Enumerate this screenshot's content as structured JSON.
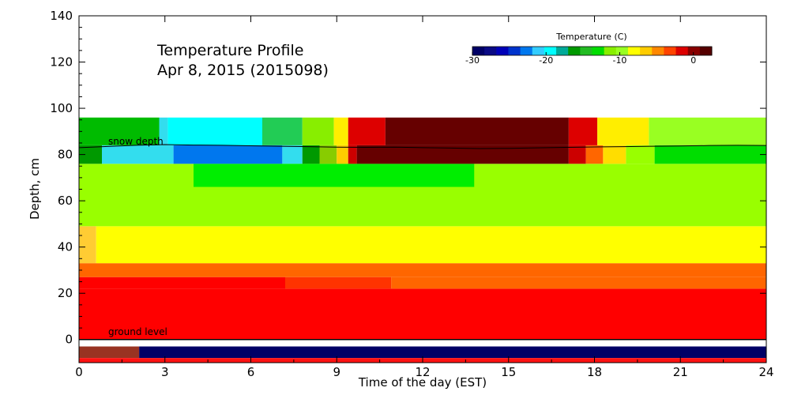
{
  "chart_data": {
    "type": "heatmap",
    "title_line1": "Temperature Profile",
    "title_line2": "Apr  8, 2015 (2015098)",
    "xlabel": "Time of the day (EST)",
    "ylabel": "Depth, cm",
    "xlim": [
      0,
      24
    ],
    "ylim": [
      -10,
      140
    ],
    "x_ticks": [
      0,
      3,
      6,
      9,
      12,
      15,
      18,
      21,
      24
    ],
    "y_ticks": [
      0,
      20,
      40,
      60,
      80,
      100,
      120,
      140
    ],
    "colorbar": {
      "label": "Temperature (C)",
      "range": [
        -30,
        2.5
      ],
      "ticks": [
        -30,
        -20,
        -10,
        0
      ],
      "colors": [
        "#000066",
        "#0a0a85",
        "#0000b8",
        "#0033cc",
        "#0077ee",
        "#33ccff",
        "#00ffff",
        "#00aa99",
        "#009900",
        "#22bb22",
        "#00dd00",
        "#88ee00",
        "#99ff22",
        "#ffff00",
        "#ffcc00",
        "#ff8800",
        "#ff4400",
        "#dd0000",
        "#880000",
        "#550000"
      ]
    },
    "annotations": {
      "snow_depth": "snow depth",
      "ground_level": "ground level"
    },
    "bands": [
      {
        "y": [
          -8,
          -3
        ],
        "segments": [
          [
            0,
            2.1,
            "#993322"
          ],
          [
            2.1,
            24,
            "#000066"
          ]
        ]
      },
      {
        "y": [
          -10,
          -8
        ],
        "segments": [
          [
            0,
            24,
            "#ff1111"
          ]
        ]
      },
      {
        "y": [
          0,
          22
        ],
        "segments": [
          [
            0,
            24,
            "#ff0000"
          ]
        ]
      },
      {
        "y": [
          22,
          27
        ],
        "segments": [
          [
            0,
            7.2,
            "#ff0000"
          ],
          [
            7.2,
            10.9,
            "#ff3300"
          ],
          [
            10.9,
            24,
            "#ff6600"
          ]
        ]
      },
      {
        "y": [
          27,
          33
        ],
        "segments": [
          [
            0,
            24,
            "#ff6600"
          ]
        ]
      },
      {
        "y": [
          33,
          49
        ],
        "segments": [
          [
            0,
            0.6,
            "#ffcc33"
          ],
          [
            0.6,
            24,
            "#ffff00"
          ]
        ]
      },
      {
        "y": [
          49,
          76
        ],
        "segments": [
          [
            0,
            24,
            "#99ff00"
          ]
        ]
      },
      {
        "y": [
          66,
          76
        ],
        "segments": [
          [
            4,
            13.8,
            "#00ee00"
          ]
        ]
      },
      {
        "y": [
          76,
          84
        ],
        "segments": [
          [
            0,
            0.8,
            "#009900"
          ],
          [
            0.8,
            3.3,
            "#33ddee"
          ],
          [
            3.3,
            7.1,
            "#0077ee"
          ],
          [
            7.1,
            7.8,
            "#33ddee"
          ],
          [
            7.8,
            8.4,
            "#009900"
          ],
          [
            8.4,
            9,
            "#88cc00"
          ],
          [
            9,
            9.4,
            "#ffcc00"
          ],
          [
            9.4,
            9.7,
            "#cc0000"
          ],
          [
            9.7,
            17.1,
            "#660000"
          ],
          [
            17.1,
            17.7,
            "#cc0000"
          ],
          [
            17.7,
            18.3,
            "#ff6600"
          ],
          [
            18.3,
            19.1,
            "#ffdd00"
          ],
          [
            19.1,
            20.1,
            "#99ff00"
          ],
          [
            20.1,
            24,
            "#00dd00"
          ]
        ]
      },
      {
        "y": [
          84,
          96
        ],
        "segments": [
          [
            0,
            2.8,
            "#00bb00"
          ],
          [
            2.8,
            3.1,
            "#33ddee"
          ],
          [
            3.1,
            6.4,
            "#00ffff"
          ],
          [
            6.4,
            7.8,
            "#22cc55"
          ],
          [
            7.8,
            8.9,
            "#88ee00"
          ],
          [
            8.9,
            9.4,
            "#ffee00"
          ],
          [
            9.4,
            10.7,
            "#dd0000"
          ],
          [
            10.7,
            17.1,
            "#660000"
          ],
          [
            17.1,
            18.1,
            "#dd0000"
          ],
          [
            18.1,
            19.9,
            "#ffee00"
          ],
          [
            19.9,
            24,
            "#99ff22"
          ]
        ]
      }
    ],
    "snow_depth_cm": [
      83,
      83.5,
      84,
      84.3,
      84.1,
      84,
      83.8,
      83.6,
      83.4,
      83.2,
      83.1,
      83.2,
      83,
      82.8,
      82.6,
      82.7,
      82.9,
      83.1,
      83.3,
      83.4,
      83.6,
      83.7,
      83.9,
      84,
      83.9
    ],
    "snow_depth_x": [
      0,
      1,
      2,
      3,
      4,
      5,
      6,
      7,
      8,
      9,
      10,
      11,
      12,
      13,
      14,
      15,
      16,
      17,
      18,
      19,
      20,
      21,
      22,
      23,
      24
    ],
    "ground_level_cm": 0
  }
}
